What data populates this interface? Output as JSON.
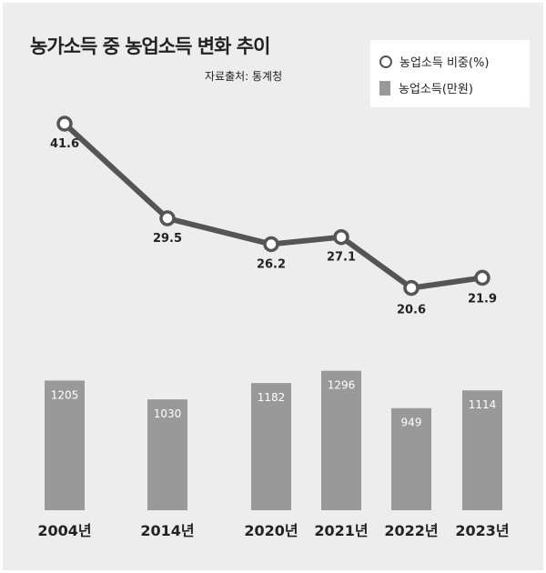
{
  "title": "농가소득 중 농업소득 변화 추이",
  "source": "자료출처: 통계청",
  "legend": {
    "line_label": "농업소득 비중(%)",
    "bar_label": "농업소득(만원)"
  },
  "colors": {
    "background": "#ededed",
    "bar": "#999999",
    "line": "#555555",
    "marker_fill": "#ffffff"
  },
  "chart_data": {
    "type": "bar",
    "categories": [
      "2004년",
      "2014년",
      "2020년",
      "2021년",
      "2022년",
      "2023년"
    ],
    "series": [
      {
        "name": "농업소득(만원)",
        "type": "bar",
        "values": [
          1205,
          1030,
          1182,
          1296,
          949,
          1114
        ]
      },
      {
        "name": "농업소득 비중(%)",
        "type": "line",
        "values": [
          41.6,
          29.5,
          26.2,
          27.1,
          20.6,
          21.9
        ]
      }
    ],
    "grid": false,
    "legend_position": "top-right"
  }
}
